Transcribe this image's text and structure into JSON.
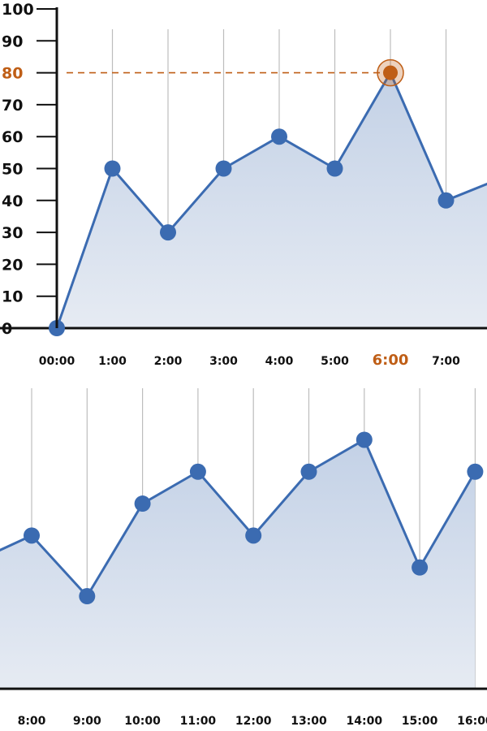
{
  "chart_data": [
    {
      "type": "area",
      "panel": "top",
      "x": [
        "00:00",
        "1:00",
        "2:00",
        "3:00",
        "4:00",
        "5:00",
        "6:00",
        "7:00"
      ],
      "values": [
        0,
        50,
        30,
        50,
        60,
        50,
        80,
        40
      ],
      "continues_right_toward": 47,
      "y_ticks": [
        0,
        10,
        20,
        30,
        40,
        50,
        60,
        70,
        80,
        90,
        100
      ],
      "ylim": [
        0,
        100
      ],
      "highlight": {
        "x": "6:00",
        "y": 80,
        "label": "80",
        "x_label": "6:00"
      },
      "grid": "vertical",
      "title": "",
      "xlabel": "",
      "ylabel": ""
    },
    {
      "type": "area",
      "panel": "bottom",
      "x": [
        "8:00",
        "9:00",
        "10:00",
        "11:00",
        "12:00",
        "13:00",
        "14:00",
        "15:00",
        "16:00"
      ],
      "values": [
        48,
        29,
        58,
        68,
        48,
        68,
        78,
        38,
        68
      ],
      "continues_left_from": 40,
      "ylim": [
        0,
        100
      ],
      "grid": "vertical",
      "title": "",
      "xlabel": "",
      "ylabel": ""
    }
  ],
  "colors": {
    "line": "#3b6bb1",
    "fill_top": "#c3d1e6",
    "fill_bottom": "#e6ebf3",
    "highlight": "#bf5e16",
    "grid": "#bdbdbd",
    "axis": "#111111",
    "text": "#111111"
  }
}
